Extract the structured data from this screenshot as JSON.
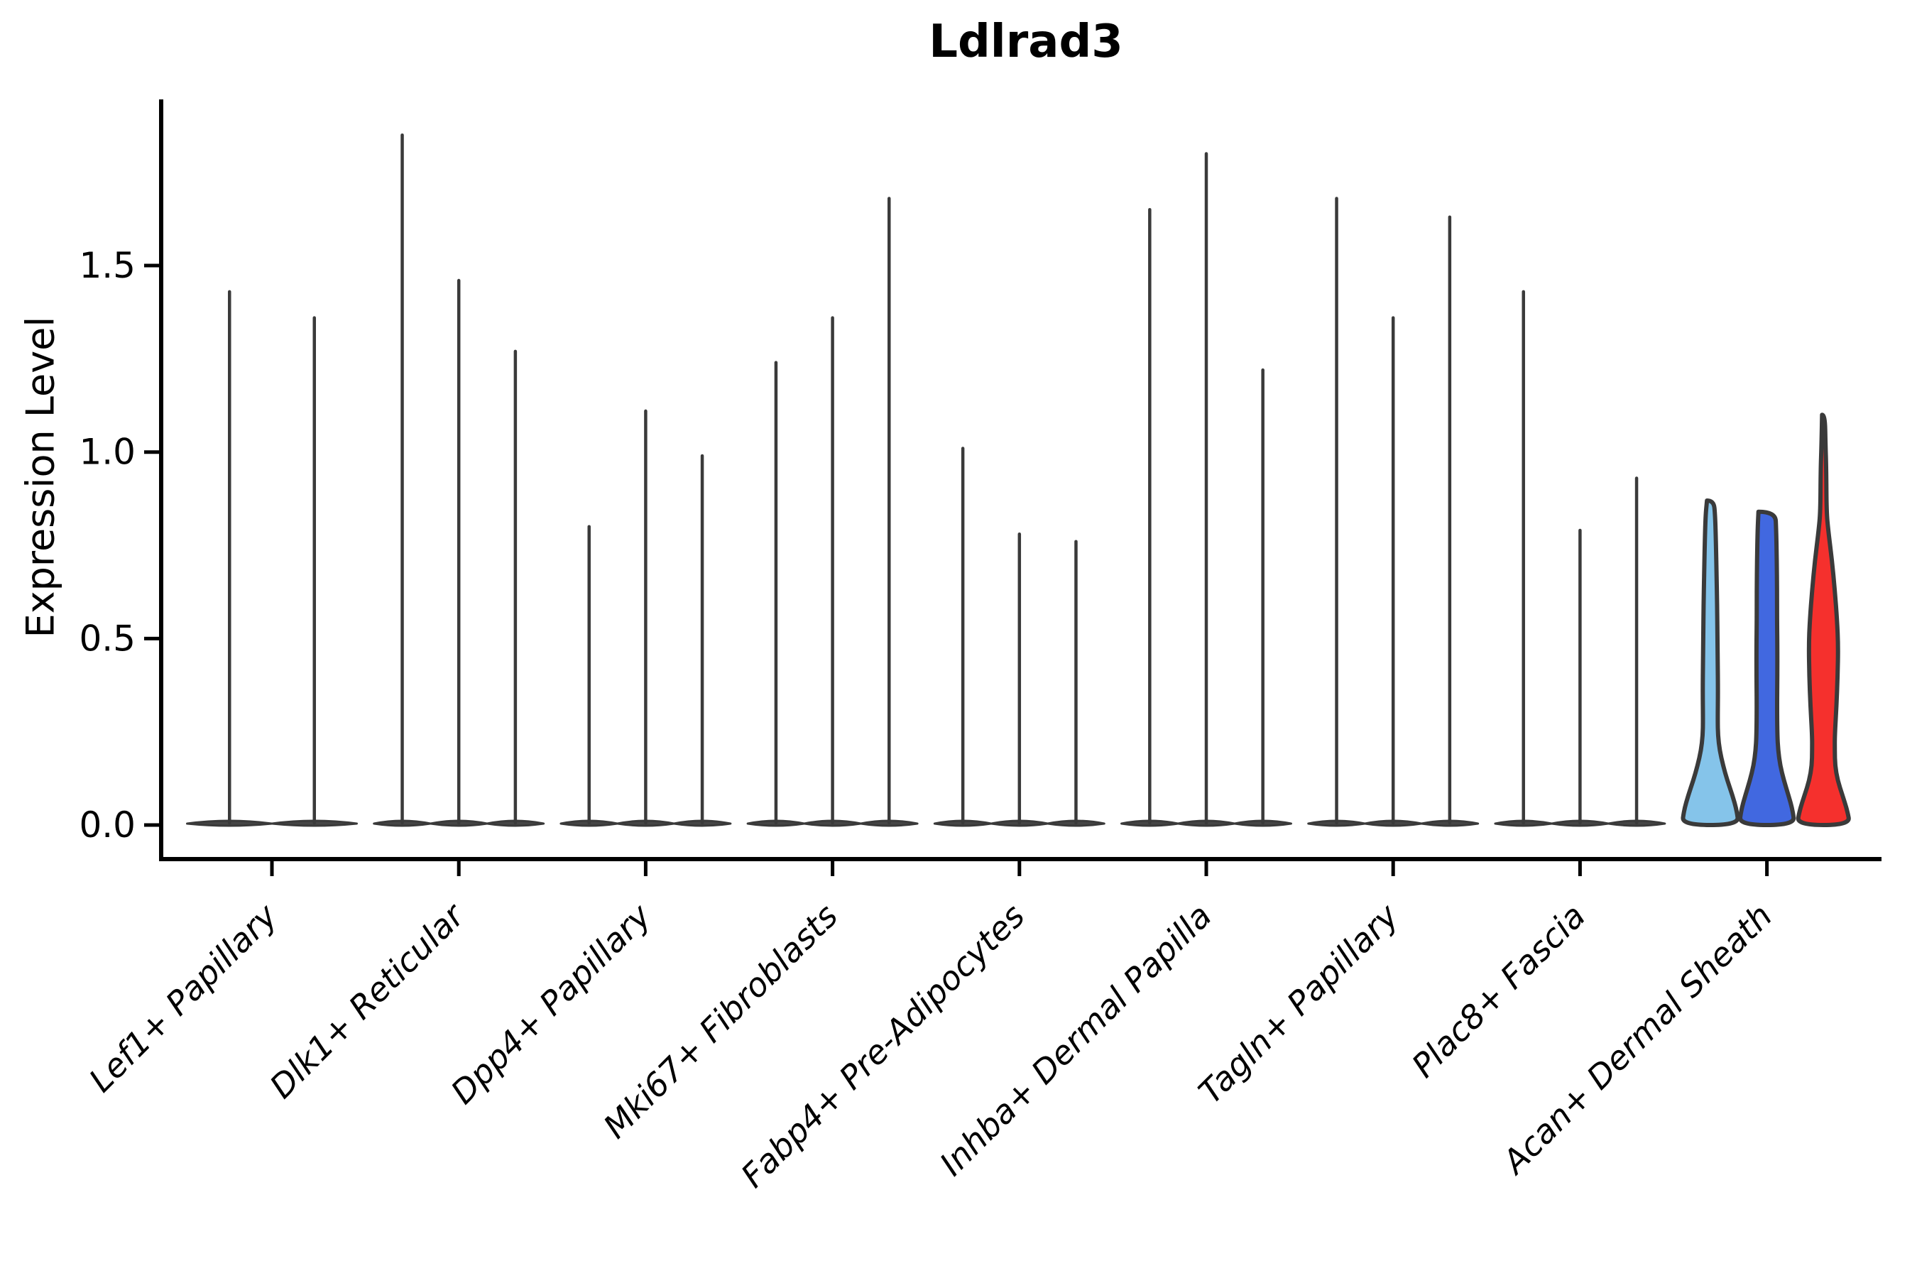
{
  "chart": {
    "title": "Ldlrad3",
    "ylabel": "Expression Level"
  },
  "chart_data": {
    "type": "violin",
    "title": "Ldlrad3",
    "xlabel": "",
    "ylabel": "Expression Level",
    "ylim": [
      0,
      1.93
    ],
    "y_ticks": [
      0,
      0.5,
      1.0,
      1.5
    ],
    "y_tick_labels": [
      "0.0",
      "0.5",
      "1.0",
      "1.5"
    ],
    "grid": "off",
    "legend_position": "none",
    "x_tick_label_style": "italic, rotated 45deg",
    "colors": {
      "violin_stroke": "#3a3a3a",
      "axis": "#000000",
      "fill_light_blue": "#85C4EA",
      "fill_blue": "#4168E0",
      "fill_red": "#F5302D"
    },
    "categories": [
      "Lef1+ Papillary",
      "Dlk1+ Reticular",
      "Dpp4+ Papillary",
      "Mki67+ Fibroblasts",
      "Fabp4+ Pre-Adipocytes",
      "Inhba+ Dermal Papilla",
      "Tagln+ Papillary",
      "Plac8+ Fascia",
      "Acan+ Dermal Sheath"
    ],
    "groups": [
      {
        "category": "Lef1+ Papillary",
        "violins": [
          {
            "kind": "spike",
            "max": 1.43
          },
          {
            "kind": "spike",
            "max": 1.36
          }
        ]
      },
      {
        "category": "Dlk1+ Reticular",
        "violins": [
          {
            "kind": "spike",
            "max": 1.85
          },
          {
            "kind": "spike",
            "max": 1.46
          },
          {
            "kind": "spike",
            "max": 1.27
          }
        ]
      },
      {
        "category": "Dpp4+ Papillary",
        "violins": [
          {
            "kind": "spike",
            "max": 0.8
          },
          {
            "kind": "spike",
            "max": 1.11
          },
          {
            "kind": "spike",
            "max": 0.99
          }
        ]
      },
      {
        "category": "Mki67+ Fibroblasts",
        "violins": [
          {
            "kind": "spike",
            "max": 1.24
          },
          {
            "kind": "spike",
            "max": 1.36
          },
          {
            "kind": "spike",
            "max": 1.68
          }
        ]
      },
      {
        "category": "Fabp4+ Pre-Adipocytes",
        "violins": [
          {
            "kind": "spike",
            "max": 1.01
          },
          {
            "kind": "spike",
            "max": 0.78
          },
          {
            "kind": "spike",
            "max": 0.76
          }
        ]
      },
      {
        "category": "Inhba+ Dermal Papilla",
        "violins": [
          {
            "kind": "spike",
            "max": 1.65
          },
          {
            "kind": "spike",
            "max": 1.8
          },
          {
            "kind": "spike",
            "max": 1.22
          }
        ]
      },
      {
        "category": "Tagln+ Papillary",
        "violins": [
          {
            "kind": "spike",
            "max": 1.68
          },
          {
            "kind": "spike",
            "max": 1.36
          },
          {
            "kind": "spike",
            "max": 1.63
          }
        ]
      },
      {
        "category": "Plac8+ Fascia",
        "violins": [
          {
            "kind": "spike",
            "max": 1.43
          },
          {
            "kind": "spike",
            "max": 0.79
          },
          {
            "kind": "spike",
            "max": 0.93
          }
        ]
      },
      {
        "category": "Acan+ Dermal Sheath",
        "violins": [
          {
            "kind": "violin",
            "max": 0.87,
            "color": "#85C4EA",
            "name": "light-blue-violin",
            "profile": [
              [
                0.87,
                0.12
              ],
              [
                0.83,
                0.17
              ],
              [
                0.75,
                0.2
              ],
              [
                0.67,
                0.22
              ],
              [
                0.59,
                0.24
              ],
              [
                0.51,
                0.25
              ],
              [
                0.44,
                0.26
              ],
              [
                0.36,
                0.27
              ],
              [
                0.28,
                0.26
              ],
              [
                0.24,
                0.27
              ],
              [
                0.2,
                0.33
              ],
              [
                0.16,
                0.45
              ],
              [
                0.12,
                0.6
              ],
              [
                0.08,
                0.78
              ],
              [
                0.04,
                0.93
              ],
              [
                0.0,
                1.0
              ]
            ]
          },
          {
            "kind": "violin",
            "max": 0.84,
            "color": "#4168E0",
            "name": "blue-violin",
            "profile": [
              [
                0.84,
                0.3
              ],
              [
                0.79,
                0.33
              ],
              [
                0.71,
                0.35
              ],
              [
                0.63,
                0.36
              ],
              [
                0.55,
                0.36
              ],
              [
                0.48,
                0.37
              ],
              [
                0.4,
                0.37
              ],
              [
                0.32,
                0.36
              ],
              [
                0.24,
                0.37
              ],
              [
                0.2,
                0.4
              ],
              [
                0.16,
                0.47
              ],
              [
                0.12,
                0.6
              ],
              [
                0.08,
                0.76
              ],
              [
                0.04,
                0.91
              ],
              [
                0.0,
                0.98
              ]
            ]
          },
          {
            "kind": "violin",
            "max": 1.1,
            "color": "#F5302D",
            "name": "red-violin",
            "profile": [
              [
                1.1,
                0.05
              ],
              [
                1.02,
                0.07
              ],
              [
                0.95,
                0.1
              ],
              [
                0.84,
                0.11
              ],
              [
                0.79,
                0.17
              ],
              [
                0.71,
                0.3
              ],
              [
                0.63,
                0.4
              ],
              [
                0.55,
                0.48
              ],
              [
                0.48,
                0.52
              ],
              [
                0.4,
                0.5
              ],
              [
                0.32,
                0.46
              ],
              [
                0.24,
                0.4
              ],
              [
                0.2,
                0.4
              ],
              [
                0.16,
                0.41
              ],
              [
                0.12,
                0.5
              ],
              [
                0.08,
                0.67
              ],
              [
                0.04,
                0.84
              ],
              [
                0.0,
                0.94
              ]
            ]
          }
        ]
      }
    ]
  }
}
